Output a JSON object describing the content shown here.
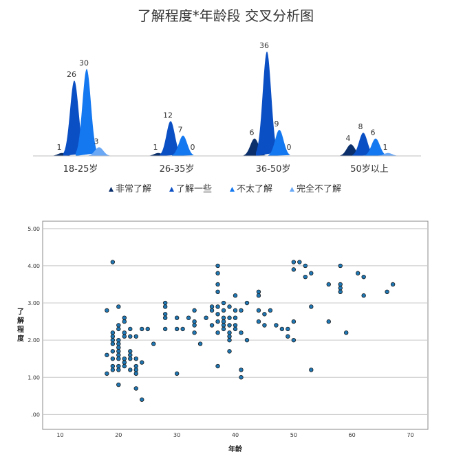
{
  "chart_data": [
    {
      "type": "area",
      "title": "了解程度*年龄段 交叉分析图",
      "categories": [
        "18-25岁",
        "26-35岁",
        "36-50岁",
        "50岁以上"
      ],
      "series": [
        {
          "name": "非常了解",
          "color": "#0a2f6b",
          "values": [
            1,
            1,
            6,
            4
          ]
        },
        {
          "name": "了解一些",
          "color": "#0b4fc4",
          "values": [
            26,
            12,
            36,
            8
          ]
        },
        {
          "name": "不太了解",
          "color": "#1478f0",
          "values": [
            30,
            7,
            9,
            6
          ]
        },
        {
          "name": "完全不了解",
          "color": "#6aa8f5",
          "values": [
            3,
            0,
            0,
            1
          ]
        }
      ],
      "legend_position": "bottom",
      "ylim": [
        0,
        36
      ]
    },
    {
      "type": "scatter",
      "xlabel": "年龄",
      "ylabel": "了解程度",
      "xlim": [
        7,
        73
      ],
      "ylim": [
        -0.4,
        5.2
      ],
      "x_ticks": [
        "10",
        "20",
        "30",
        "40",
        "50",
        "60",
        "70"
      ],
      "y_ticks": [
        ".00",
        "1.00",
        "2.00",
        "3.00",
        "4.00",
        "5.00"
      ],
      "grid": "horizontal",
      "points": [
        [
          19,
          4.1
        ],
        [
          18,
          2.8
        ],
        [
          19,
          2.2
        ],
        [
          19,
          2.1
        ],
        [
          19,
          2.0
        ],
        [
          19,
          1.9
        ],
        [
          20,
          2.9
        ],
        [
          20,
          2.4
        ],
        [
          20,
          2.3
        ],
        [
          20,
          2.0
        ],
        [
          20,
          1.9
        ],
        [
          20,
          1.8
        ],
        [
          20,
          1.7
        ],
        [
          20,
          1.6
        ],
        [
          20,
          1.5
        ],
        [
          20,
          1.3
        ],
        [
          20,
          1.2
        ],
        [
          20,
          0.8
        ],
        [
          21,
          2.6
        ],
        [
          21,
          2.5
        ],
        [
          21,
          2.2
        ],
        [
          21,
          2.1
        ],
        [
          21,
          1.5
        ],
        [
          21,
          1.4
        ],
        [
          21,
          1.3
        ],
        [
          19,
          1.7
        ],
        [
          19,
          1.5
        ],
        [
          19,
          1.3
        ],
        [
          18,
          1.6
        ],
        [
          18,
          1.1
        ],
        [
          19,
          1.2
        ],
        [
          22,
          2.3
        ],
        [
          22,
          2.1
        ],
        [
          22,
          1.7
        ],
        [
          22,
          1.6
        ],
        [
          22,
          1.5
        ],
        [
          22,
          1.2
        ],
        [
          23,
          2.1
        ],
        [
          23,
          1.5
        ],
        [
          23,
          1.3
        ],
        [
          23,
          1.2
        ],
        [
          23,
          1.1
        ],
        [
          23,
          0.7
        ],
        [
          24,
          2.3
        ],
        [
          24,
          1.4
        ],
        [
          24,
          0.4
        ],
        [
          25,
          2.3
        ],
        [
          26,
          1.9
        ],
        [
          28,
          3.0
        ],
        [
          28,
          2.9
        ],
        [
          28,
          2.7
        ],
        [
          28,
          2.6
        ],
        [
          28,
          2.3
        ],
        [
          30,
          2.6
        ],
        [
          30,
          2.3
        ],
        [
          30,
          1.1
        ],
        [
          31,
          2.3
        ],
        [
          32,
          2.6
        ],
        [
          33,
          2.8
        ],
        [
          33,
          2.5
        ],
        [
          33,
          2.4
        ],
        [
          33,
          2.2
        ],
        [
          34,
          1.9
        ],
        [
          35,
          2.6
        ],
        [
          36,
          2.9
        ],
        [
          36,
          2.8
        ],
        [
          36,
          2.4
        ],
        [
          37,
          4.0
        ],
        [
          37,
          3.8
        ],
        [
          37,
          3.5
        ],
        [
          37,
          3.3
        ],
        [
          37,
          2.9
        ],
        [
          37,
          2.7
        ],
        [
          37,
          2.5
        ],
        [
          37,
          1.3
        ],
        [
          37,
          2.2
        ],
        [
          38,
          3.0
        ],
        [
          38,
          2.8
        ],
        [
          38,
          2.6
        ],
        [
          38,
          2.5
        ],
        [
          38,
          2.4
        ],
        [
          38,
          2.3
        ],
        [
          39,
          2.9
        ],
        [
          39,
          2.6
        ],
        [
          39,
          2.4
        ],
        [
          39,
          2.2
        ],
        [
          39,
          2.1
        ],
        [
          39,
          2.0
        ],
        [
          39,
          1.7
        ],
        [
          40,
          3.2
        ],
        [
          40,
          2.8
        ],
        [
          40,
          2.6
        ],
        [
          40,
          2.4
        ],
        [
          40,
          2.3
        ],
        [
          41,
          2.8
        ],
        [
          41,
          1.2
        ],
        [
          41,
          1.0
        ],
        [
          41,
          2.2
        ],
        [
          42,
          3.0
        ],
        [
          42,
          2.0
        ],
        [
          44,
          3.3
        ],
        [
          44,
          3.2
        ],
        [
          44,
          2.8
        ],
        [
          44,
          2.5
        ],
        [
          45,
          2.7
        ],
        [
          45,
          2.4
        ],
        [
          46,
          2.8
        ],
        [
          47,
          2.4
        ],
        [
          48,
          2.3
        ],
        [
          49,
          2.3
        ],
        [
          49,
          2.1
        ],
        [
          50,
          4.1
        ],
        [
          50,
          3.9
        ],
        [
          50,
          2.5
        ],
        [
          50,
          2.0
        ],
        [
          51,
          4.1
        ],
        [
          52,
          4.0
        ],
        [
          52,
          3.7
        ],
        [
          53,
          3.8
        ],
        [
          53,
          2.9
        ],
        [
          53,
          1.2
        ],
        [
          56,
          3.5
        ],
        [
          56,
          2.5
        ],
        [
          58,
          4.0
        ],
        [
          58,
          3.5
        ],
        [
          58,
          3.4
        ],
        [
          58,
          3.3
        ],
        [
          59,
          2.2
        ],
        [
          61,
          3.8
        ],
        [
          62,
          3.7
        ],
        [
          62,
          3.2
        ],
        [
          66,
          3.3
        ],
        [
          67,
          3.5
        ]
      ],
      "point_color": "#1f77b4"
    }
  ]
}
